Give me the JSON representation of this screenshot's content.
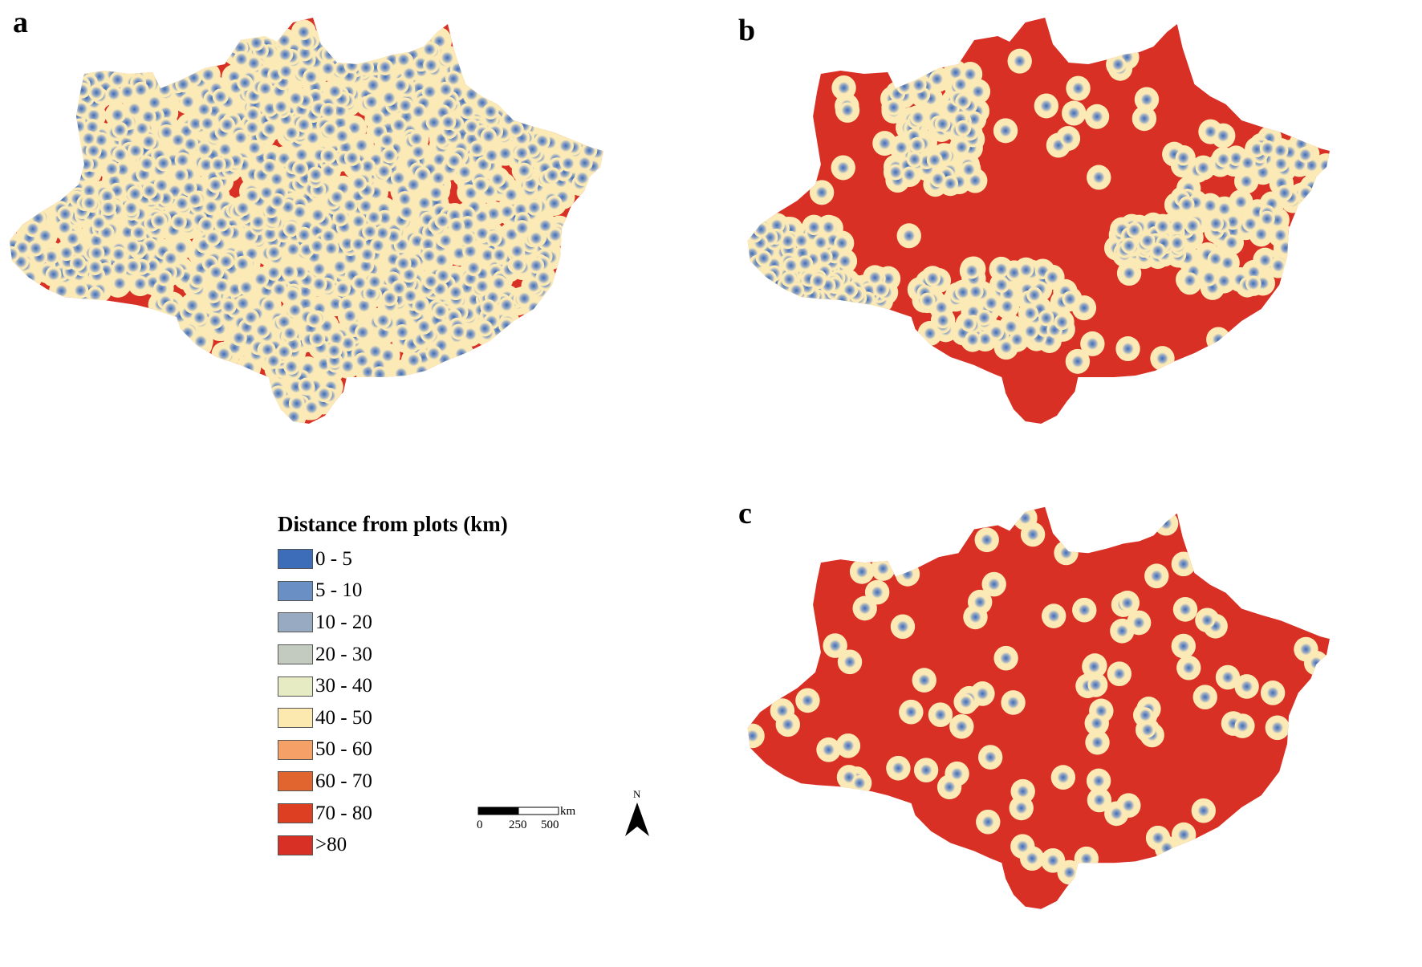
{
  "panels": [
    {
      "label": "a",
      "coverage": "dense"
    },
    {
      "label": "b",
      "coverage": "medium"
    },
    {
      "label": "c",
      "coverage": "sparse"
    }
  ],
  "legend": {
    "title": "Distance from plots (km)",
    "items": [
      {
        "label": "0 - 5",
        "color": "#3d6cb9"
      },
      {
        "label": "5 - 10",
        "color": "#6a8fc4"
      },
      {
        "label": "10 - 20",
        "color": "#98a9c2"
      },
      {
        "label": "20 - 30",
        "color": "#c3cbc0"
      },
      {
        "label": "30 - 40",
        "color": "#e6ebc3"
      },
      {
        "label": "40 - 50",
        "color": "#fbe9b0"
      },
      {
        "label": "50 - 60",
        "color": "#f5a067"
      },
      {
        "label": "60 - 70",
        "color": "#e0652e"
      },
      {
        "label": "70 - 80",
        "color": "#dc3f22"
      },
      {
        "label": ">80",
        "color": "#d93025"
      }
    ]
  },
  "scalebar": {
    "unit": "km",
    "ticks": [
      "0",
      "250",
      "500"
    ]
  },
  "north_arrow": {
    "label": "N"
  },
  "colors": {
    "far": "#d93025",
    "near": "#3d6cb9",
    "buffer": "#fbeab6",
    "mid": "#98a9c2"
  }
}
